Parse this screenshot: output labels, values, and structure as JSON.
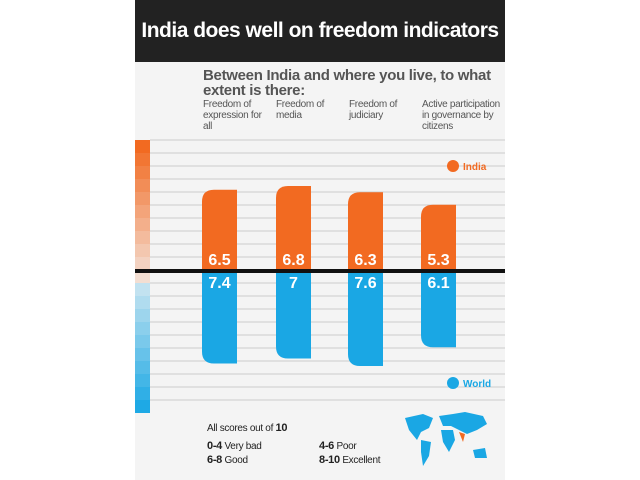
{
  "title": "India does well on freedom indicators",
  "question": "Between India and where you live, to what extent is there:",
  "chart_data": {
    "type": "bar",
    "categories": [
      "Freedom of expression for all",
      "Freedom of media",
      "Freedom of judiciary",
      "Active participation in governance by citizens"
    ],
    "series": [
      {
        "name": "India",
        "values": [
          6.5,
          6.8,
          6.3,
          5.3
        ],
        "color": "#f26a21"
      },
      {
        "name": "World",
        "values": [
          7.4,
          7,
          7.6,
          6.1
        ],
        "color": "#1aa7e4"
      }
    ],
    "ylim": [
      0,
      10
    ],
    "grid": true,
    "legend": "right"
  },
  "footer": {
    "note": "All scores out of ",
    "note_max": "10",
    "scale": [
      {
        "range": "0-4",
        "label": "Very bad"
      },
      {
        "range": "4-6",
        "label": "Poor"
      },
      {
        "range": "6-8",
        "label": "Good"
      },
      {
        "range": "8-10",
        "label": "Excellent"
      }
    ],
    "map_icon": "world-map-icon"
  }
}
